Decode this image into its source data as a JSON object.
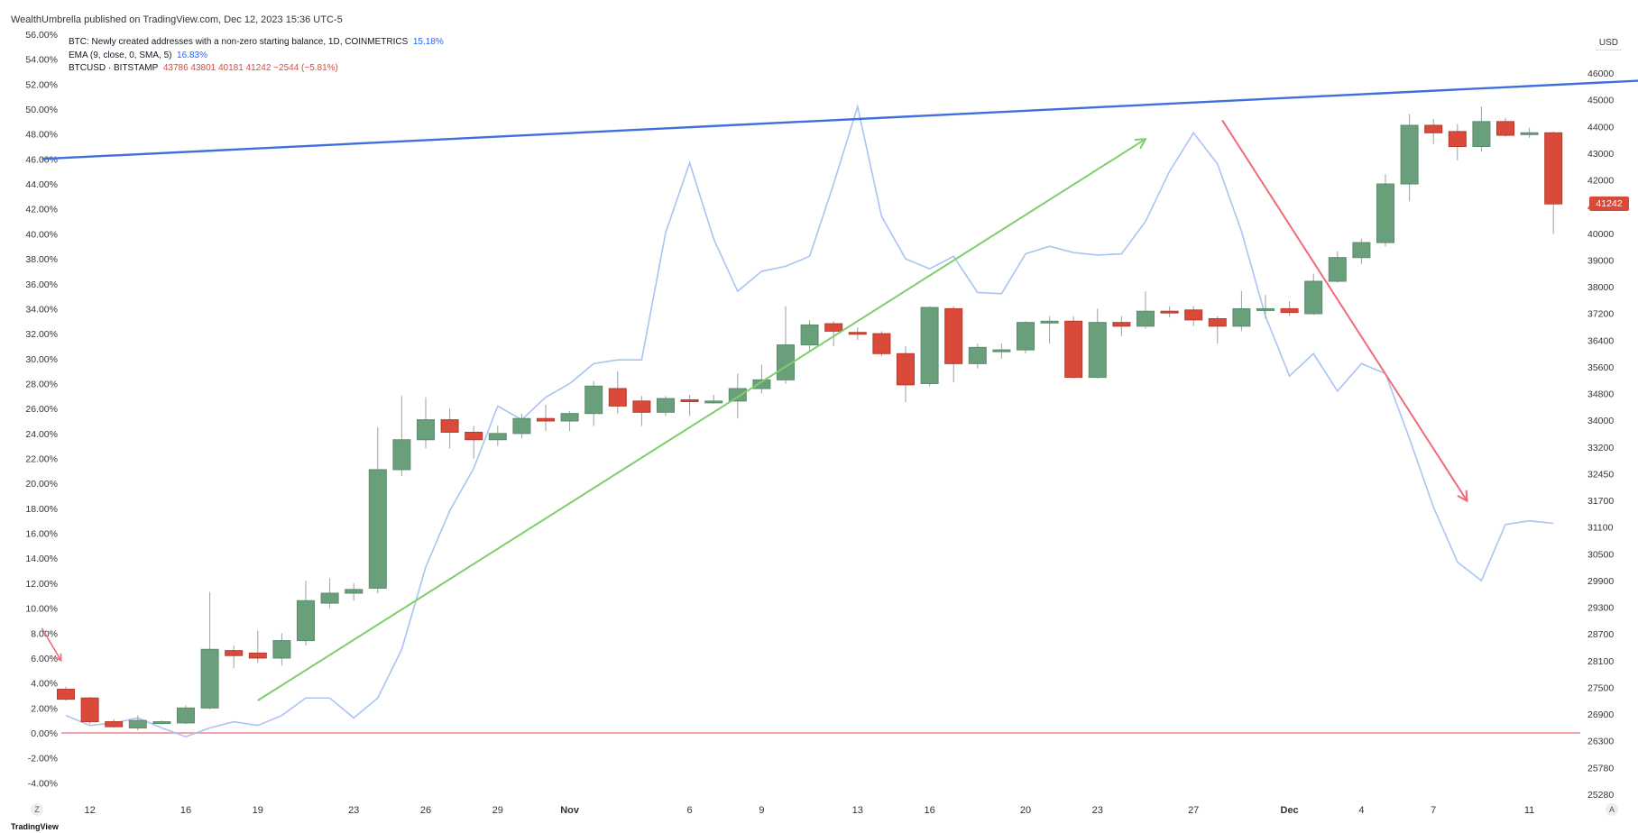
{
  "header": {
    "published": "WealthUmbrella published on TradingView.com, Dec 12, 2023 15:36 UTC-5"
  },
  "legend": {
    "line1_label": "BTC: Newly created addresses with a non-zero starting balance, 1D, COINMETRICS",
    "line1_value": "15.18%",
    "line2_label": "EMA (9, close, 0, SMA, 5)",
    "line2_value": "16.83%",
    "line3_label": "BTCUSD · BITSTAMP",
    "line3_value": "43786  43801  40181  41242  −2544 (−5.81%)"
  },
  "right_axis_unit": "USD",
  "last_price_label": "41242",
  "footer_logo": "TradingView",
  "buttons": {
    "left": "Z",
    "right": "A"
  },
  "colors": {
    "up": "#6a9f7c",
    "down": "#d94a3a",
    "ema": "#a9c4f2",
    "trend_blue": "#3f6fdc",
    "trend_green": "#7ccf6b",
    "trend_red": "#ef6b79",
    "zero_line": "#f4a3ab"
  },
  "chart_data": {
    "type": "candlestick",
    "left_axis": {
      "ticks": [
        "56.00%",
        "54.00%",
        "52.00%",
        "50.00%",
        "48.00%",
        "46.00%",
        "44.00%",
        "42.00%",
        "40.00%",
        "38.00%",
        "36.00%",
        "34.00%",
        "32.00%",
        "30.00%",
        "28.00%",
        "26.00%",
        "24.00%",
        "22.00%",
        "20.00%",
        "18.00%",
        "16.00%",
        "14.00%",
        "12.00%",
        "10.00%",
        "8.00%",
        "6.00%",
        "4.00%",
        "2.00%",
        "0.00%",
        "-2.00%",
        "-4.00%"
      ],
      "range": [
        -6,
        56
      ]
    },
    "right_axis": {
      "ticks": [
        "46000",
        "45000",
        "44000",
        "43000",
        "42000",
        "41000",
        "40000",
        "39000",
        "38000",
        "37200",
        "36400",
        "35600",
        "34800",
        "34000",
        "33200",
        "32450",
        "31700",
        "31100",
        "30500",
        "29900",
        "29300",
        "28700",
        "28100",
        "27500",
        "26900",
        "26300",
        "25780",
        "25280"
      ]
    },
    "x_ticks": [
      {
        "label": "12",
        "i": 1
      },
      {
        "label": "16",
        "i": 5
      },
      {
        "label": "19",
        "i": 8
      },
      {
        "label": "23",
        "i": 12
      },
      {
        "label": "26",
        "i": 15
      },
      {
        "label": "29",
        "i": 18
      },
      {
        "label": "Nov",
        "i": 21
      },
      {
        "label": "6",
        "i": 26
      },
      {
        "label": "9",
        "i": 29
      },
      {
        "label": "13",
        "i": 33
      },
      {
        "label": "16",
        "i": 36
      },
      {
        "label": "20",
        "i": 40
      },
      {
        "label": "23",
        "i": 43
      },
      {
        "label": "27",
        "i": 47
      },
      {
        "label": "Dec",
        "i": 51
      },
      {
        "label": "4",
        "i": 54
      },
      {
        "label": "7",
        "i": 57
      },
      {
        "label": "11",
        "i": 61
      }
    ],
    "candles": [
      {
        "o": 3.5,
        "h": 3.7,
        "l": 2.6,
        "c": 2.7
      },
      {
        "o": 2.8,
        "h": 2.9,
        "l": 0.7,
        "c": 0.9
      },
      {
        "o": 0.9,
        "h": 1.1,
        "l": 0.4,
        "c": 0.5
      },
      {
        "o": 0.4,
        "h": 1.4,
        "l": 0.2,
        "c": 1.0
      },
      {
        "o": 0.9,
        "h": 1.0,
        "l": 0.7,
        "c": 0.9
      },
      {
        "o": 0.8,
        "h": 2.2,
        "l": 0.7,
        "c": 2.0
      },
      {
        "o": 2.0,
        "h": 11.3,
        "l": 1.9,
        "c": 6.7
      },
      {
        "o": 6.6,
        "h": 7.0,
        "l": 5.2,
        "c": 6.2
      },
      {
        "o": 6.4,
        "h": 8.2,
        "l": 5.6,
        "c": 6.0
      },
      {
        "o": 6.0,
        "h": 8.0,
        "l": 5.4,
        "c": 7.4
      },
      {
        "o": 7.4,
        "h": 12.2,
        "l": 7.0,
        "c": 10.6
      },
      {
        "o": 10.4,
        "h": 12.4,
        "l": 10.0,
        "c": 11.2
      },
      {
        "o": 11.2,
        "h": 12.0,
        "l": 10.6,
        "c": 11.5
      },
      {
        "o": 11.6,
        "h": 24.5,
        "l": 11.2,
        "c": 21.1
      },
      {
        "o": 21.1,
        "h": 27.0,
        "l": 20.6,
        "c": 23.5
      },
      {
        "o": 23.5,
        "h": 26.9,
        "l": 22.8,
        "c": 25.1
      },
      {
        "o": 25.1,
        "h": 26.0,
        "l": 22.8,
        "c": 24.1
      },
      {
        "o": 24.1,
        "h": 24.6,
        "l": 22.0,
        "c": 23.5
      },
      {
        "o": 23.5,
        "h": 24.6,
        "l": 23.0,
        "c": 24.0
      },
      {
        "o": 24.0,
        "h": 25.6,
        "l": 23.6,
        "c": 25.2
      },
      {
        "o": 25.2,
        "h": 26.3,
        "l": 24.2,
        "c": 25.0
      },
      {
        "o": 25.0,
        "h": 25.8,
        "l": 24.2,
        "c": 25.6
      },
      {
        "o": 25.6,
        "h": 28.2,
        "l": 24.6,
        "c": 27.8
      },
      {
        "o": 27.6,
        "h": 29.0,
        "l": 25.6,
        "c": 26.2
      },
      {
        "o": 26.6,
        "h": 27.0,
        "l": 24.6,
        "c": 25.7
      },
      {
        "o": 25.7,
        "h": 27.0,
        "l": 25.4,
        "c": 26.8
      },
      {
        "o": 26.7,
        "h": 27.1,
        "l": 25.4,
        "c": 26.6
      },
      {
        "o": 26.6,
        "h": 27.1,
        "l": 26.4,
        "c": 26.6
      },
      {
        "o": 26.6,
        "h": 28.8,
        "l": 25.2,
        "c": 27.6
      },
      {
        "o": 27.6,
        "h": 29.5,
        "l": 27.2,
        "c": 28.3
      },
      {
        "o": 28.3,
        "h": 34.2,
        "l": 28.0,
        "c": 31.1
      },
      {
        "o": 31.1,
        "h": 33.1,
        "l": 30.6,
        "c": 32.7
      },
      {
        "o": 32.8,
        "h": 33.0,
        "l": 31.0,
        "c": 32.2
      },
      {
        "o": 32.1,
        "h": 32.5,
        "l": 31.5,
        "c": 32.0
      },
      {
        "o": 32.0,
        "h": 32.2,
        "l": 30.2,
        "c": 30.4
      },
      {
        "o": 30.4,
        "h": 31.0,
        "l": 26.5,
        "c": 27.9
      },
      {
        "o": 28.0,
        "h": 34.2,
        "l": 27.8,
        "c": 34.1
      },
      {
        "o": 34.0,
        "h": 34.2,
        "l": 28.1,
        "c": 29.6
      },
      {
        "o": 29.6,
        "h": 31.2,
        "l": 29.2,
        "c": 30.9
      },
      {
        "o": 30.7,
        "h": 31.2,
        "l": 30.0,
        "c": 30.7
      },
      {
        "o": 30.7,
        "h": 33.0,
        "l": 30.4,
        "c": 32.9
      },
      {
        "o": 32.9,
        "h": 33.4,
        "l": 31.2,
        "c": 33.0
      },
      {
        "o": 33.0,
        "h": 33.4,
        "l": 28.4,
        "c": 28.5
      },
      {
        "o": 28.5,
        "h": 34.0,
        "l": 28.4,
        "c": 32.9
      },
      {
        "o": 32.9,
        "h": 33.4,
        "l": 31.8,
        "c": 32.6
      },
      {
        "o": 32.6,
        "h": 35.4,
        "l": 32.4,
        "c": 33.8
      },
      {
        "o": 33.8,
        "h": 34.2,
        "l": 33.3,
        "c": 33.7
      },
      {
        "o": 33.9,
        "h": 34.2,
        "l": 32.6,
        "c": 33.1
      },
      {
        "o": 33.2,
        "h": 33.4,
        "l": 31.2,
        "c": 32.6
      },
      {
        "o": 32.6,
        "h": 35.4,
        "l": 32.2,
        "c": 34.0
      },
      {
        "o": 34.0,
        "h": 35.1,
        "l": 33.2,
        "c": 34.0
      },
      {
        "o": 34.0,
        "h": 34.6,
        "l": 33.4,
        "c": 33.7
      },
      {
        "o": 33.6,
        "h": 36.8,
        "l": 33.5,
        "c": 36.2
      },
      {
        "o": 36.2,
        "h": 38.6,
        "l": 36.1,
        "c": 38.1
      },
      {
        "o": 38.1,
        "h": 39.6,
        "l": 37.6,
        "c": 39.3
      },
      {
        "o": 39.3,
        "h": 44.8,
        "l": 39.0,
        "c": 44.0
      },
      {
        "o": 44.0,
        "h": 49.6,
        "l": 42.6,
        "c": 48.7
      },
      {
        "o": 48.7,
        "h": 49.2,
        "l": 47.2,
        "c": 48.1
      },
      {
        "o": 48.2,
        "h": 48.8,
        "l": 45.9,
        "c": 47.0
      },
      {
        "o": 47.0,
        "h": 50.2,
        "l": 46.6,
        "c": 49.0
      },
      {
        "o": 49.0,
        "h": 49.3,
        "l": 47.8,
        "c": 47.9
      },
      {
        "o": 48.0,
        "h": 48.5,
        "l": 47.7,
        "c": 48.1
      },
      {
        "o": 48.1,
        "h": 48.2,
        "l": 40.0,
        "c": 42.4
      }
    ],
    "ema_series": [
      1.4,
      0.6,
      0.8,
      1.2,
      0.4,
      -0.3,
      0.4,
      0.9,
      0.6,
      1.4,
      2.8,
      2.8,
      1.2,
      2.8,
      6.7,
      13.3,
      17.8,
      21.2,
      26.2,
      25.1,
      26.9,
      28.0,
      29.6,
      29.9,
      29.9,
      40.1,
      45.7,
      39.6,
      35.4,
      37.0,
      37.4,
      38.2,
      44.0,
      50.2,
      41.4,
      38.0,
      37.2,
      38.2,
      35.3,
      35.2,
      38.4,
      39.0,
      38.5,
      38.3,
      38.4,
      41.0,
      45.0,
      48.1,
      45.6,
      40.2,
      33.4,
      28.6,
      30.4,
      27.4,
      29.6,
      28.8,
      23.6,
      18.1,
      13.7,
      12.2,
      16.7,
      17.0,
      16.8
    ],
    "annotations": {
      "blue_trend": [
        [
          -1,
          46.0
        ],
        [
          69,
          52.6
        ]
      ],
      "green_arrow": [
        [
          8,
          2.6
        ],
        [
          45,
          47.6
        ]
      ],
      "red_arrow_large": [
        [
          48.2,
          49.1
        ],
        [
          58.4,
          18.6
        ]
      ],
      "red_arrow_small": [
        [
          -1,
          8.4
        ],
        [
          -0.2,
          5.8
        ]
      ],
      "zero_line": 0
    }
  }
}
